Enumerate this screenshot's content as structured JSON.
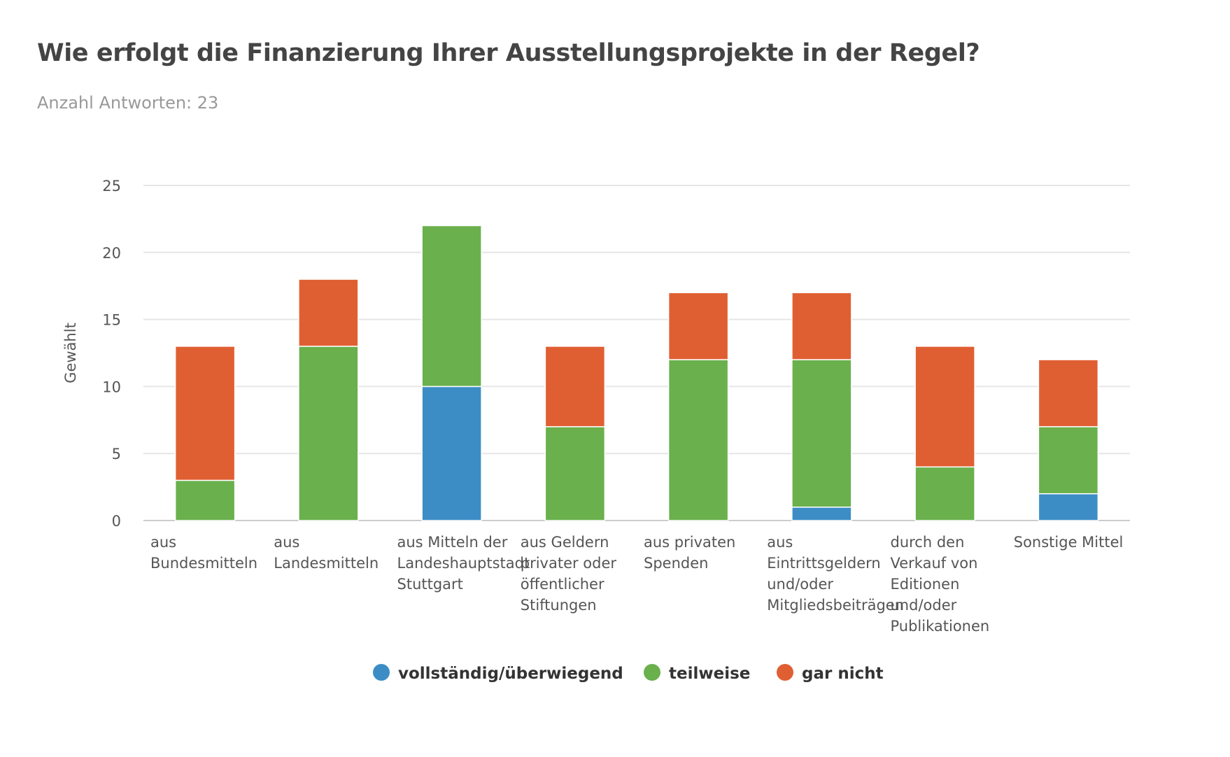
{
  "title": "Wie erfolgt die Finanzierung Ihrer Ausstellungsprojekte in der Regel?",
  "subtitle": "Anzahl Antworten: 23",
  "chart_data": {
    "type": "bar",
    "stacked": true,
    "ylabel": "Gewählt",
    "ylim": [
      0,
      25
    ],
    "yticks": [
      0,
      5,
      10,
      15,
      20,
      25
    ],
    "grid": true,
    "legend_position": "bottom",
    "categories": [
      [
        "aus",
        "Bundesmitteln"
      ],
      [
        "aus",
        "Landesmitteln"
      ],
      [
        "aus Mitteln der",
        "Landeshauptstadt",
        "Stuttgart"
      ],
      [
        "aus Geldern",
        "privater oder",
        "öffentlicher",
        "Stiftungen"
      ],
      [
        "aus privaten",
        "Spenden"
      ],
      [
        "aus",
        "Eintrittsgeldern",
        "und/oder",
        "Mitgliedsbeiträgen"
      ],
      [
        "durch den",
        "Verkauf von",
        "Editionen",
        "und/oder",
        "Publikationen"
      ],
      [
        "Sonstige Mittel"
      ]
    ],
    "series": [
      {
        "name": "vollständig/überwiegend",
        "color": "#3c8dc5",
        "values": [
          0,
          0,
          10,
          0,
          0,
          1,
          0,
          2
        ]
      },
      {
        "name": "teilweise",
        "color": "#6ab04c",
        "values": [
          3,
          13,
          12,
          7,
          12,
          11,
          4,
          5
        ]
      },
      {
        "name": "gar nicht",
        "color": "#e05f32",
        "values": [
          10,
          5,
          0,
          6,
          5,
          5,
          9,
          5
        ]
      }
    ]
  }
}
